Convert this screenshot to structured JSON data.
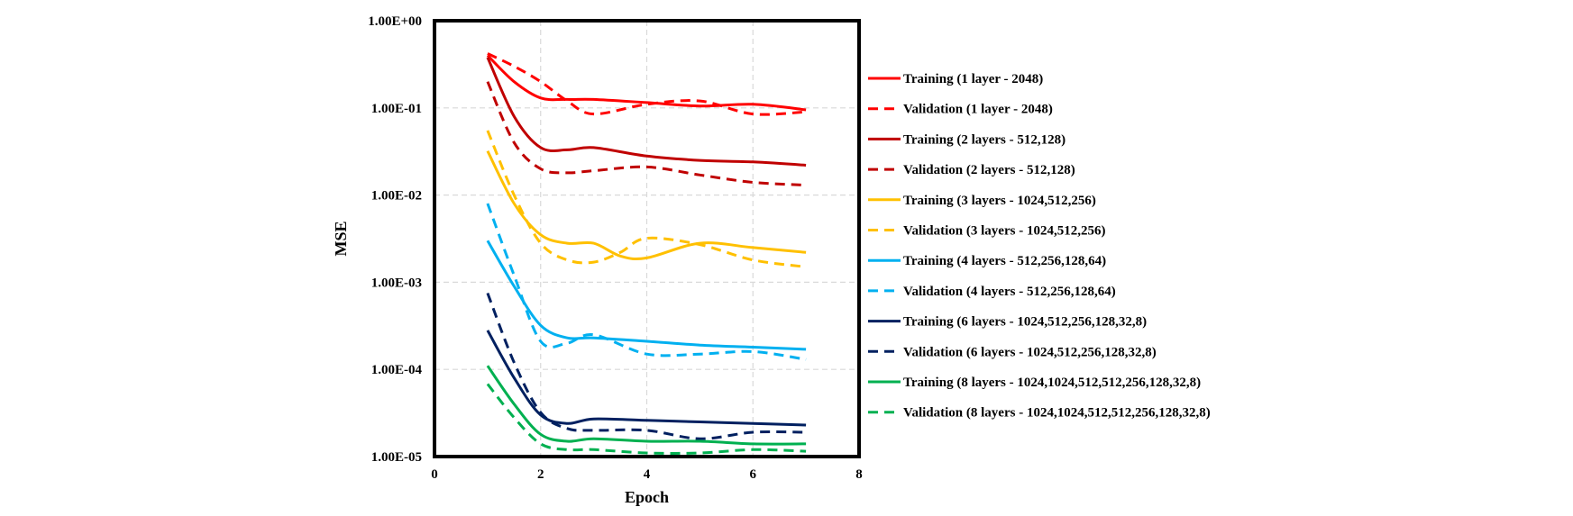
{
  "chart_data": {
    "type": "line",
    "xlabel": "Epoch",
    "ylabel": "MSE",
    "xlim": [
      0,
      8
    ],
    "ylim": [
      1e-05,
      1
    ],
    "y_scale": "log",
    "grid": true,
    "legend_position": "right",
    "x_ticks": [
      "0",
      "2",
      "4",
      "6",
      "8"
    ],
    "y_ticks": [
      "1.00E-05",
      "1.00E-04",
      "1.00E-03",
      "1.00E-02",
      "1.00E-01",
      "1.00E+00"
    ],
    "series": [
      {
        "name": "Training (1 layer - 2048)",
        "color": "#ff0000",
        "dashed": false,
        "x": [
          1,
          1.5,
          2,
          2.5,
          3,
          4,
          5,
          6,
          7
        ],
        "y": [
          0.4,
          0.2,
          0.13,
          0.125,
          0.125,
          0.115,
          0.105,
          0.11,
          0.095
        ]
      },
      {
        "name": "Validation (1 layer - 2048)",
        "color": "#ff0000",
        "dashed": true,
        "x": [
          1,
          1.5,
          2,
          2.5,
          3,
          4,
          5,
          6,
          7
        ],
        "y": [
          0.42,
          0.3,
          0.2,
          0.12,
          0.085,
          0.11,
          0.12,
          0.085,
          0.09
        ]
      },
      {
        "name": "Training (2 layers - 512,128)",
        "color": "#c00000",
        "dashed": false,
        "x": [
          1,
          1.5,
          2,
          2.5,
          3,
          4,
          5,
          6,
          7
        ],
        "y": [
          0.38,
          0.08,
          0.035,
          0.033,
          0.035,
          0.028,
          0.025,
          0.024,
          0.022
        ]
      },
      {
        "name": "Validation (2 layers - 512,128)",
        "color": "#c00000",
        "dashed": true,
        "x": [
          1,
          1.5,
          2,
          2.5,
          3,
          4,
          5,
          6,
          7
        ],
        "y": [
          0.2,
          0.04,
          0.02,
          0.018,
          0.019,
          0.021,
          0.017,
          0.014,
          0.013
        ]
      },
      {
        "name": "Training (3 layers - 1024,512,256)",
        "color": "#ffc000",
        "dashed": false,
        "x": [
          1,
          1.5,
          2,
          2.5,
          3,
          3.5,
          4,
          5,
          6,
          7
        ],
        "y": [
          0.032,
          0.008,
          0.0035,
          0.0028,
          0.0028,
          0.002,
          0.0019,
          0.0028,
          0.0025,
          0.0022
        ]
      },
      {
        "name": "Validation (3 layers - 1024,512,256)",
        "color": "#ffc000",
        "dashed": true,
        "x": [
          1,
          1.5,
          2,
          2.5,
          3,
          3.5,
          4,
          5,
          6,
          7
        ],
        "y": [
          0.055,
          0.01,
          0.0028,
          0.0018,
          0.0017,
          0.0022,
          0.0032,
          0.0027,
          0.0018,
          0.0015
        ]
      },
      {
        "name": "Training (4 layers - 512,256,128,64)",
        "color": "#00b0f0",
        "dashed": false,
        "x": [
          1,
          1.5,
          2,
          2.5,
          3,
          4,
          5,
          6,
          7
        ],
        "y": [
          0.003,
          0.0009,
          0.00032,
          0.00023,
          0.00023,
          0.00021,
          0.00019,
          0.00018,
          0.00017
        ]
      },
      {
        "name": "Validation (4 layers - 512,256,128,64)",
        "color": "#00b0f0",
        "dashed": true,
        "x": [
          1,
          1.5,
          2,
          2.5,
          3,
          4,
          5,
          6,
          7
        ],
        "y": [
          0.008,
          0.0012,
          0.00021,
          0.0002,
          0.00025,
          0.00015,
          0.00015,
          0.00016,
          0.00013
        ]
      },
      {
        "name": "Training (6 layers - 1024,512,256,128,32,8)",
        "color": "#002060",
        "dashed": false,
        "x": [
          1,
          1.5,
          2,
          2.5,
          3,
          4,
          5,
          6,
          7
        ],
        "y": [
          0.00028,
          8e-05,
          3e-05,
          2.4e-05,
          2.7e-05,
          2.6e-05,
          2.5e-05,
          2.4e-05,
          2.3e-05
        ]
      },
      {
        "name": "Validation (6 layers - 1024,512,256,128,32,8)",
        "color": "#002060",
        "dashed": true,
        "x": [
          1,
          1.5,
          2,
          2.5,
          3,
          4,
          5,
          6,
          7
        ],
        "y": [
          0.00075,
          0.00012,
          3.2e-05,
          2.1e-05,
          2e-05,
          2e-05,
          1.6e-05,
          1.9e-05,
          1.9e-05
        ]
      },
      {
        "name": "Training (8 layers - 1024,1024,512,512,256,128,32,8)",
        "color": "#00b050",
        "dashed": false,
        "x": [
          1,
          1.5,
          2,
          2.5,
          3,
          4,
          5,
          6,
          7
        ],
        "y": [
          0.00011,
          4e-05,
          1.8e-05,
          1.5e-05,
          1.6e-05,
          1.5e-05,
          1.5e-05,
          1.4e-05,
          1.4e-05
        ]
      },
      {
        "name": "Validation (8 layers - 1024,1024,512,512,256,128,32,8)",
        "color": "#00b050",
        "dashed": true,
        "x": [
          1,
          1.5,
          2,
          2.5,
          3,
          4,
          5,
          6,
          7
        ],
        "y": [
          6.8e-05,
          2.8e-05,
          1.4e-05,
          1.2e-05,
          1.2e-05,
          1.1e-05,
          1.1e-05,
          1.2e-05,
          1.15e-05
        ]
      }
    ]
  }
}
